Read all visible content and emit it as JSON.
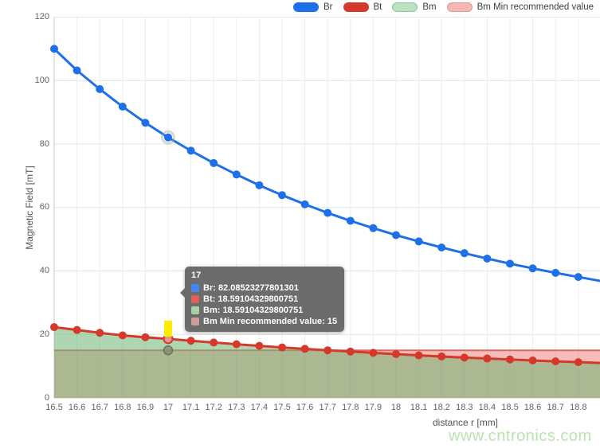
{
  "watermark": "www.cntronics.com",
  "legend": {
    "items": [
      {
        "label": "Br",
        "swatch": "#1e70e8",
        "border": "#1e70e8"
      },
      {
        "label": "Bt",
        "swatch": "#d5392c",
        "border": "#d5392c"
      },
      {
        "label": "Bm",
        "swatch": "#b9e2c2",
        "border": "#8cc89a"
      },
      {
        "label": "Bm Min recommended value",
        "swatch": "#f4b7b2",
        "border": "#e29a93"
      }
    ]
  },
  "tooltip": {
    "title": "17",
    "rows": [
      {
        "swatch": "#4285f4",
        "text": "Br: 82.08523277801301"
      },
      {
        "swatch": "#e06055",
        "text": "Bt: 18.59104329800751"
      },
      {
        "swatch": "#a8cfa8",
        "text": "Bm: 18.59104329800751"
      },
      {
        "swatch": "#cf9e9a",
        "text": "Bm Min recommended value: 15"
      }
    ]
  },
  "chart_data": {
    "type": "line",
    "title": "",
    "xlabel": "distance r [mm]",
    "ylabel": "Magnetic Field [mT]",
    "xlim": [
      16.5,
      18.9
    ],
    "ylim": [
      0,
      120
    ],
    "grid": true,
    "legend_position": "top-right",
    "y_ticks": [
      0,
      20,
      40,
      60,
      80,
      100,
      120
    ],
    "y_tick_labels": [
      "0",
      "20",
      "40",
      "60",
      "80",
      "100",
      "120"
    ],
    "x": [
      16.5,
      16.6,
      16.7,
      16.8,
      16.9,
      17,
      17.1,
      17.2,
      17.3,
      17.4,
      17.5,
      17.6,
      17.7,
      17.8,
      17.9,
      18,
      18.1,
      18.2,
      18.3,
      18.4,
      18.5,
      18.6,
      18.7,
      18.8
    ],
    "x_tick_labels": [
      "16.5",
      "16.6",
      "16.7",
      "16.8",
      "16.9",
      "17",
      "17.1",
      "17.2",
      "17.3",
      "17.4",
      "17.5",
      "17.6",
      "17.7",
      "17.8",
      "17.9",
      "18",
      "18.1",
      "18.2",
      "18.3",
      "18.4",
      "18.5",
      "18.6",
      "18.7",
      "18.8"
    ],
    "series": [
      {
        "name": "Br",
        "kind": "line",
        "color": "#1e70e8",
        "values": [
          110.0,
          103.2,
          97.3,
          91.8,
          86.7,
          82.08523277801301,
          77.9,
          74.0,
          70.4,
          67.0,
          63.9,
          61.0,
          58.3,
          55.8,
          53.5,
          51.3,
          49.3,
          47.4,
          45.6,
          43.9,
          42.3,
          40.8,
          39.4,
          38.1
        ]
      },
      {
        "name": "Bt",
        "kind": "line",
        "color": "#d5392c",
        "values": [
          22.3,
          21.4,
          20.5,
          19.7,
          19.1,
          18.59104329800751,
          18.0,
          17.45,
          16.9,
          16.4,
          15.9,
          15.45,
          15.0,
          14.6,
          14.2,
          13.8,
          13.4,
          13.05,
          12.7,
          12.4,
          12.1,
          11.8,
          11.5,
          11.25
        ]
      },
      {
        "name": "Bm",
        "kind": "area",
        "fill": "rgba(110,180,115,0.55)",
        "line_color": "none",
        "values": [
          22.3,
          21.4,
          20.5,
          19.7,
          19.1,
          18.59104329800751,
          18.0,
          17.45,
          16.9,
          16.4,
          15.9,
          15.45,
          15.0,
          14.6,
          14.2,
          13.8,
          13.4,
          13.05,
          12.7,
          12.4,
          12.1,
          11.8,
          11.5,
          11.25
        ]
      },
      {
        "name": "Bm Min recommended value",
        "kind": "area",
        "fill": "rgba(232,106,100,0.45)",
        "line_color": "rgba(217,85,75,0.85)",
        "values": [
          15,
          15,
          15,
          15,
          15,
          15,
          15,
          15,
          15,
          15,
          15,
          15,
          15,
          15,
          15,
          15,
          15,
          15,
          15,
          15,
          15,
          15,
          15,
          15
        ]
      }
    ],
    "hover": {
      "x_label": "17",
      "index": 5,
      "bm_min_value": 15
    }
  }
}
